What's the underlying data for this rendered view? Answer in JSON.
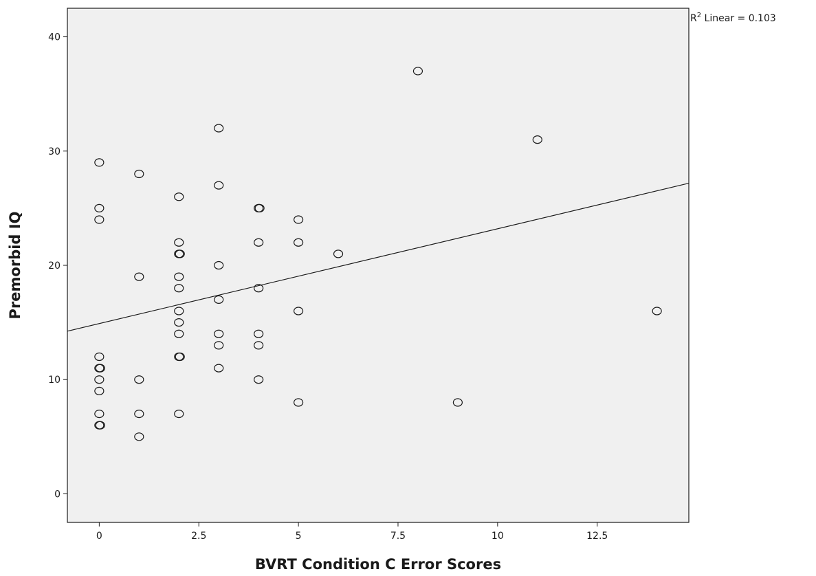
{
  "chart_data": {
    "type": "scatter",
    "xlabel": "BVRT Condition C Error Scores",
    "ylabel": "Premorbid IQ",
    "xlim": [
      -0.8,
      14.8
    ],
    "ylim": [
      -2.5,
      42.5
    ],
    "xticks": [
      0,
      2.5,
      5,
      7.5,
      10,
      12.5
    ],
    "xtick_labels": [
      "0",
      "2.5",
      "5",
      "7.5",
      "10",
      "12.5"
    ],
    "yticks": [
      0,
      10,
      20,
      30,
      40
    ],
    "ytick_labels": [
      "0",
      "10",
      "20",
      "30",
      "40"
    ],
    "grid": false,
    "fit_line": {
      "type": "linear",
      "r2_prefix": "R",
      "r2_superscript": "2",
      "r2_text": " Linear = 0.103",
      "intercept": 14.9,
      "slope": 0.83
    },
    "points": [
      {
        "x": 0,
        "y": 29
      },
      {
        "x": 0,
        "y": 25
      },
      {
        "x": 0,
        "y": 24
      },
      {
        "x": 0,
        "y": 12
      },
      {
        "x": 0,
        "y": 11
      },
      {
        "x": 0,
        "y": 11
      },
      {
        "x": 0,
        "y": 10
      },
      {
        "x": 0,
        "y": 9
      },
      {
        "x": 0,
        "y": 7
      },
      {
        "x": 0,
        "y": 6
      },
      {
        "x": 0,
        "y": 6
      },
      {
        "x": 1,
        "y": 28
      },
      {
        "x": 1,
        "y": 19
      },
      {
        "x": 1,
        "y": 10
      },
      {
        "x": 1,
        "y": 7
      },
      {
        "x": 1,
        "y": 5
      },
      {
        "x": 2,
        "y": 26
      },
      {
        "x": 2,
        "y": 22
      },
      {
        "x": 2,
        "y": 21
      },
      {
        "x": 2,
        "y": 21
      },
      {
        "x": 2,
        "y": 19
      },
      {
        "x": 2,
        "y": 18
      },
      {
        "x": 2,
        "y": 16
      },
      {
        "x": 2,
        "y": 15
      },
      {
        "x": 2,
        "y": 14
      },
      {
        "x": 2,
        "y": 12
      },
      {
        "x": 2,
        "y": 12
      },
      {
        "x": 2,
        "y": 7
      },
      {
        "x": 3,
        "y": 32
      },
      {
        "x": 3,
        "y": 27
      },
      {
        "x": 3,
        "y": 20
      },
      {
        "x": 3,
        "y": 17
      },
      {
        "x": 3,
        "y": 14
      },
      {
        "x": 3,
        "y": 13
      },
      {
        "x": 3,
        "y": 11
      },
      {
        "x": 4,
        "y": 25
      },
      {
        "x": 4,
        "y": 25
      },
      {
        "x": 4,
        "y": 22
      },
      {
        "x": 4,
        "y": 18
      },
      {
        "x": 4,
        "y": 14
      },
      {
        "x": 4,
        "y": 13
      },
      {
        "x": 4,
        "y": 10
      },
      {
        "x": 5,
        "y": 24
      },
      {
        "x": 5,
        "y": 22
      },
      {
        "x": 5,
        "y": 16
      },
      {
        "x": 5,
        "y": 8
      },
      {
        "x": 6,
        "y": 21
      },
      {
        "x": 8,
        "y": 37
      },
      {
        "x": 9,
        "y": 8
      },
      {
        "x": 11,
        "y": 31
      },
      {
        "x": 14,
        "y": 16
      }
    ]
  }
}
